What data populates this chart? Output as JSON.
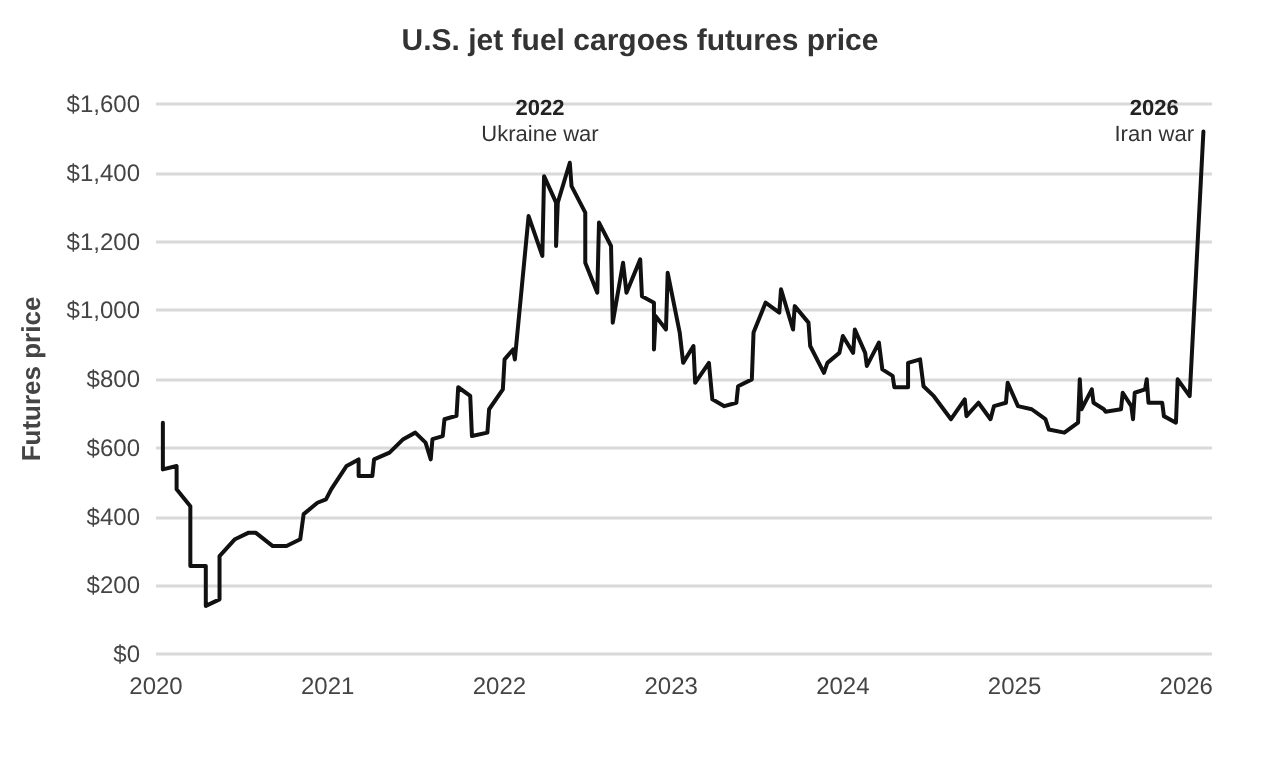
{
  "chart_data": {
    "type": "line",
    "title": "U.S. jet fuel cargoes futures price",
    "ylabel": "Futures price",
    "x": [
      2020.04,
      2020.04,
      2020.12,
      2020.12,
      2020.2,
      2020.2,
      2020.29,
      2020.29,
      2020.37,
      2020.37,
      2020.46,
      2020.54,
      2020.58,
      2020.68,
      2020.76,
      2020.84,
      2020.86,
      2020.94,
      2020.99,
      2021.02,
      2021.11,
      2021.18,
      2021.18,
      2021.26,
      2021.27,
      2021.36,
      2021.44,
      2021.51,
      2021.57,
      2021.6,
      2021.61,
      2021.67,
      2021.68,
      2021.75,
      2021.76,
      2021.83,
      2021.84,
      2021.93,
      2021.94,
      2022.02,
      2022.03,
      2022.08,
      2022.09,
      2022.17,
      2022.25,
      2022.26,
      2022.33,
      2022.33,
      2022.34,
      2022.41,
      2022.42,
      2022.5,
      2022.5,
      2022.57,
      2022.58,
      2022.65,
      2022.66,
      2022.72,
      2022.74,
      2022.82,
      2022.83,
      2022.9,
      2022.9,
      2022.91,
      2022.97,
      2022.98,
      2023.05,
      2023.07,
      2023.13,
      2023.14,
      2023.22,
      2023.24,
      2023.31,
      2023.38,
      2023.39,
      2023.47,
      2023.48,
      2023.55,
      2023.63,
      2023.64,
      2023.71,
      2023.72,
      2023.8,
      2023.81,
      2023.89,
      2023.91,
      2023.98,
      2024.0,
      2024.06,
      2024.07,
      2024.13,
      2024.14,
      2024.21,
      2024.23,
      2024.29,
      2024.3,
      2024.38,
      2024.38,
      2024.45,
      2024.47,
      2024.53,
      2024.63,
      2024.71,
      2024.72,
      2024.79,
      2024.86,
      2024.88,
      2024.95,
      2024.96,
      2025.02,
      2025.1,
      2025.18,
      2025.2,
      2025.29,
      2025.37,
      2025.38,
      2025.39,
      2025.45,
      2025.46,
      2025.52,
      2025.53,
      2025.62,
      2025.63,
      2025.68,
      2025.69,
      2025.7,
      2025.76,
      2025.77,
      2025.78,
      2025.86,
      2025.87,
      2025.94,
      2025.95,
      2026.02,
      2026.1
    ],
    "values": [
      673,
      537,
      547,
      479,
      430,
      256,
      256,
      140,
      159,
      285,
      334,
      353,
      353,
      314,
      314,
      334,
      407,
      440,
      450,
      479,
      547,
      566,
      518,
      518,
      566,
      586,
      625,
      644,
      615,
      566,
      625,
      634,
      683,
      693,
      776,
      751,
      634,
      644,
      712,
      770,
      857,
      886,
      857,
      1274,
      1158,
      1390,
      1313,
      1187,
      1313,
      1429,
      1361,
      1284,
      1138,
      1051,
      1255,
      1187,
      964,
      1138,
      1051,
      1148,
      1041,
      1022,
      886,
      983,
      944,
      1109,
      935,
      847,
      896,
      789,
      847,
      741,
      721,
      731,
      779,
      799,
      935,
      1022,
      993,
      1061,
      944,
      1012,
      964,
      896,
      818,
      847,
      876,
      925,
      876,
      944,
      876,
      838,
      906,
      828,
      809,
      776,
      776,
      847,
      857,
      779,
      750,
      683,
      741,
      692,
      731,
      683,
      721,
      731,
      789,
      721,
      712,
      683,
      653,
      644,
      673,
      799,
      712,
      770,
      731,
      712,
      705,
      712,
      760,
      721,
      683,
      760,
      770,
      799,
      731,
      731,
      692,
      673,
      799,
      750,
      1520
    ],
    "color": "#111111",
    "marker": "none",
    "line_style": "solid",
    "grid": "y",
    "xlim": [
      2020,
      2026.15
    ],
    "xticks": [
      2020,
      2021,
      2022,
      2023,
      2024,
      2025,
      2026
    ],
    "ylim": [
      0,
      1600
    ],
    "yticks": [
      {
        "value": 0,
        "label": "$0"
      },
      {
        "value": 200,
        "label": "$200"
      },
      {
        "value": 400,
        "label": "$400"
      },
      {
        "value": 600,
        "label": "$600"
      },
      {
        "value": 800,
        "label": "$800"
      },
      {
        "value": 1000,
        "label": "$1,000"
      },
      {
        "value": 1200,
        "label": "$1,200"
      },
      {
        "value": 1400,
        "label": "$1,400"
      },
      {
        "value": 1600,
        "label": "$1,600"
      }
    ],
    "annotations": [
      "2022\nUkraine war",
      "2026\nIran war"
    ]
  }
}
